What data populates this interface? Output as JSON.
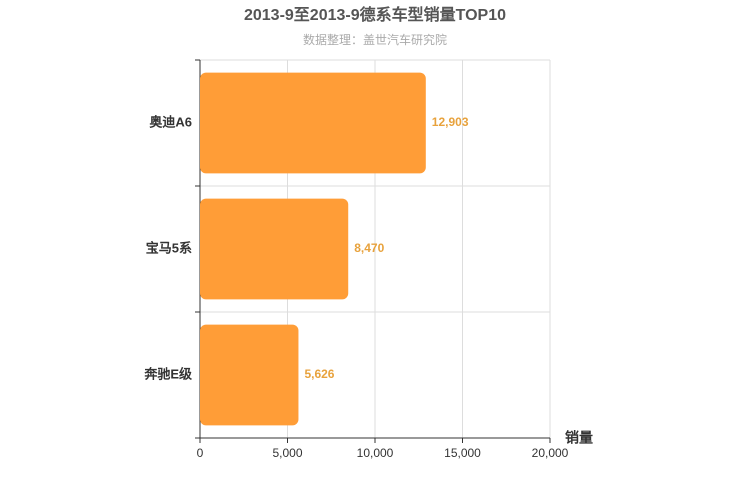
{
  "chart_data": {
    "type": "hbar",
    "title": "2013-9至2013-9德系车型销量TOP10",
    "subtitle": "数据整理：盖世汽车研究院",
    "x_label": "销量",
    "categories": [
      "奥迪A6",
      "宝马5系",
      "奔驰E级"
    ],
    "values": [
      12903,
      8470,
      5626
    ],
    "value_labels": [
      "12,903",
      "8,470",
      "5,626"
    ],
    "color": "#ff9d37",
    "xlim": [
      0,
      20000
    ],
    "xticks": [
      0,
      {
        "value": 5000,
        "label": "5,000"
      },
      {
        "value": 10000,
        "label": "10,000"
      },
      {
        "value": 15000,
        "label": "15,000"
      },
      {
        "value": 20000,
        "label": "20,000"
      }
    ],
    "grid": true
  }
}
